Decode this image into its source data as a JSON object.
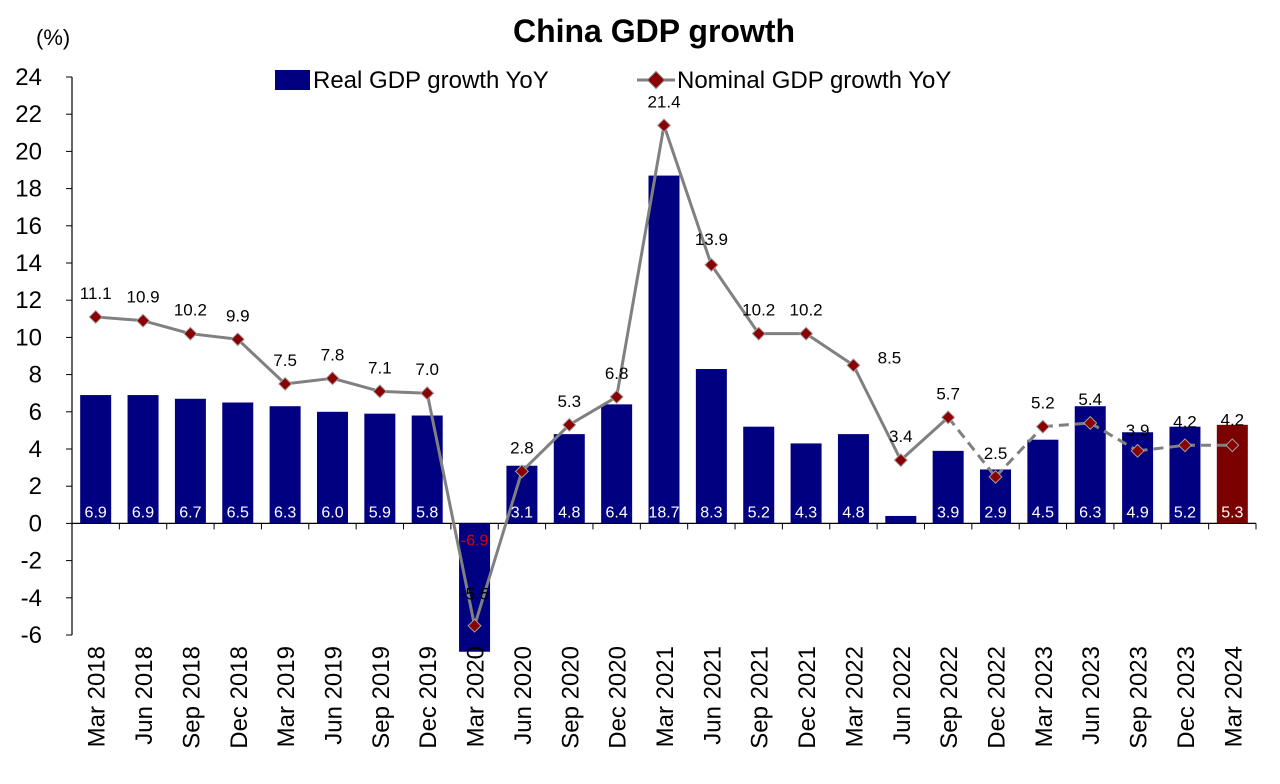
{
  "chart_data": {
    "type": "bar",
    "title": "China GDP growth",
    "unit_label": "(%)",
    "categories": [
      "Mar 2018",
      "Jun 2018",
      "Sep 2018",
      "Dec 2018",
      "Mar 2019",
      "Jun 2019",
      "Sep 2019",
      "Dec 2019",
      "Mar 2020",
      "Jun 2020",
      "Sep 2020",
      "Dec 2020",
      "Mar 2021",
      "Jun 2021",
      "Sep 2021",
      "Dec 2021",
      "Mar 2022",
      "Jun 2022",
      "Sep 2022",
      "Dec 2022",
      "Mar 2023",
      "Jun 2023",
      "Sep 2023",
      "Dec 2023",
      "Mar 2024"
    ],
    "ylim": [
      -6,
      24
    ],
    "yticks": [
      -6,
      -4,
      -2,
      0,
      2,
      4,
      6,
      8,
      10,
      12,
      14,
      16,
      18,
      20,
      22,
      24
    ],
    "negative_tick_color": "#e00000",
    "series": [
      {
        "name": "Real GDP growth YoY",
        "kind": "bar",
        "color": "#000080",
        "highlight_color": "#7b0000",
        "highlight_index": 24,
        "values": [
          6.9,
          6.9,
          6.7,
          6.5,
          6.3,
          6.0,
          5.9,
          5.8,
          -6.9,
          3.1,
          4.8,
          6.4,
          18.7,
          8.3,
          5.2,
          4.3,
          4.8,
          0.4,
          3.9,
          2.9,
          4.5,
          6.3,
          4.9,
          5.2,
          5.3
        ],
        "labels": [
          "6.9",
          "6.9",
          "6.7",
          "6.5",
          "6.3",
          "6.0",
          "5.9",
          "5.8",
          "-6.9",
          "3.1",
          "4.8",
          "6.4",
          "18.7",
          "8.3",
          "5.2",
          "4.3",
          "4.8",
          "",
          "3.9",
          "2.9",
          "4.5",
          "6.3",
          "4.9",
          "5.2",
          "5.3"
        ]
      },
      {
        "name": "Nominal GDP growth YoY",
        "kind": "line",
        "line_color": "#808080",
        "marker_color": "#8b0000",
        "dashed_from_index": 18,
        "values": [
          11.1,
          10.9,
          10.2,
          9.9,
          7.5,
          7.8,
          7.1,
          7.0,
          -5.5,
          2.8,
          5.3,
          6.8,
          21.4,
          13.9,
          10.2,
          10.2,
          8.5,
          3.4,
          5.7,
          2.5,
          5.2,
          5.4,
          3.9,
          4.2,
          4.2
        ],
        "labels": [
          "11.1",
          "10.9",
          "10.2",
          "9.9",
          "7.5",
          "7.8",
          "7.1",
          "7.0",
          "-5.5",
          "2.8",
          "5.3",
          "6.8",
          "21.4",
          "13.9",
          "10.2",
          "10.2",
          "8.5",
          "3.4",
          "5.7",
          "2.5",
          "5.2",
          "5.4",
          "3.9",
          "4.2",
          "4.2"
        ]
      }
    ],
    "legend_position": "top-center"
  }
}
